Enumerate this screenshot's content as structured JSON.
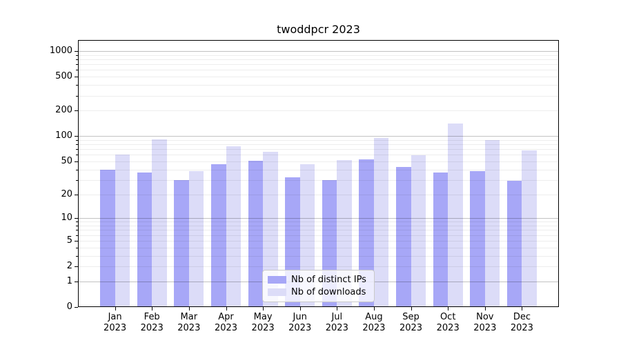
{
  "figure": {
    "background": "#ffffff"
  },
  "chart_data": {
    "type": "bar",
    "title": "twoddpcr 2023",
    "categories": [
      "Jan",
      "Feb",
      "Mar",
      "Apr",
      "May",
      "Jun",
      "Jul",
      "Aug",
      "Sep",
      "Oct",
      "Nov",
      "Dec"
    ],
    "year_label": "2023",
    "series": [
      {
        "name": "Nb of distinct IPs",
        "color": "#a7a7f7",
        "values": [
          40,
          37,
          30,
          46,
          51,
          32,
          30,
          53,
          43,
          37,
          38,
          29
        ]
      },
      {
        "name": "Nb of downloads",
        "color": "#dcdcf8",
        "values": [
          60,
          91,
          38,
          76,
          65,
          46,
          52,
          94,
          59,
          140,
          89,
          67
        ]
      }
    ],
    "xlabel": "",
    "ylabel": "",
    "scale": "log1p",
    "ylim": [
      0,
      1347
    ],
    "y_ticks": [
      0,
      1,
      2,
      5,
      10,
      20,
      50,
      100,
      200,
      500,
      1000
    ],
    "y_minor_ticks": [
      2,
      3,
      4,
      5,
      6,
      7,
      8,
      9,
      20,
      30,
      40,
      50,
      60,
      70,
      80,
      90,
      200,
      300,
      400,
      500,
      600,
      700,
      800,
      900
    ],
    "major_grid_values": [
      1,
      10,
      100,
      1000
    ],
    "grid": true,
    "legend_position": "lower center",
    "axis_color": "#000000",
    "major_grid_color": "rgba(0,0,0,0.24)",
    "minor_grid_color": "rgba(0,0,0,0.07)"
  }
}
